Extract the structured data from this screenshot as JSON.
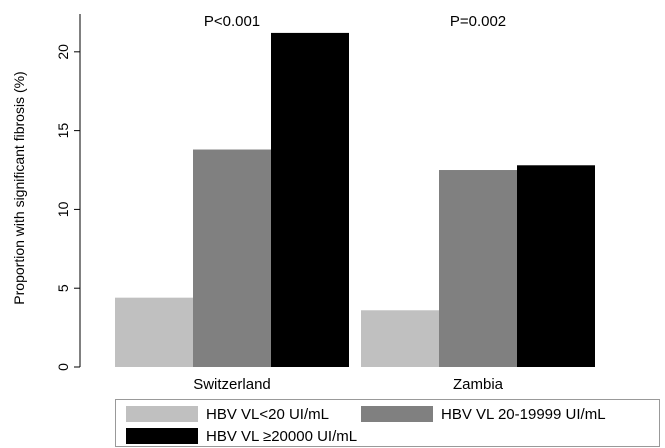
{
  "chart_data": {
    "type": "bar",
    "categories": [
      "Switzerland",
      "Zambia"
    ],
    "series": [
      {
        "name": "HBV VL<20 UI/mL",
        "values": [
          4.4,
          3.6
        ],
        "color": "#c0c0c0"
      },
      {
        "name": "HBV VL 20-19999 UI/mL",
        "values": [
          13.8,
          12.5
        ],
        "color": "#808080"
      },
      {
        "name": "HBV VL ≥20000 UI/mL",
        "values": [
          21.2,
          12.8
        ],
        "color": "#000000"
      }
    ],
    "annotations": [
      "P<0.001",
      "P=0.002"
    ],
    "ylabel": "Proportion with significant fibrosis (%)",
    "xlabel": "",
    "yticks": [
      0,
      5,
      10,
      15,
      20
    ],
    "ytick_labels": [
      "0",
      "5",
      "10",
      "15",
      "20"
    ],
    "ylim": [
      0,
      22.4
    ],
    "grid": false,
    "legend_position": "bottom"
  }
}
